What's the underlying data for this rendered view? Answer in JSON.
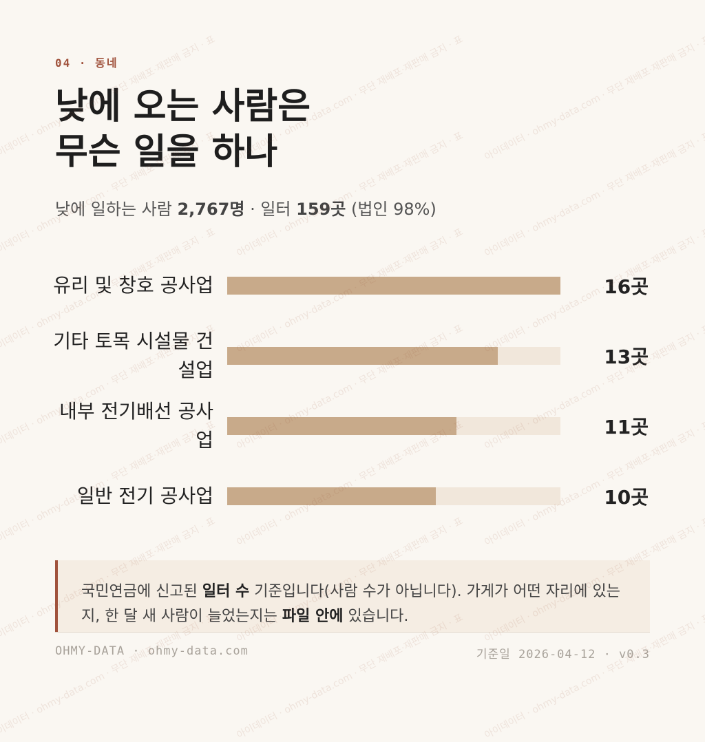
{
  "header": {
    "eyebrow": "04 · 동네",
    "title_lines": [
      "낮에 오는 사람은",
      "무슨 일을 하나"
    ]
  },
  "subtitle": [
    "낮에 일하는 사람 ",
    "2,767명",
    " · 일터 ",
    "159곳",
    " (법인 98%)"
  ],
  "chart_data": {
    "type": "bar",
    "orientation": "horizontal",
    "categories": [
      "유리 및 창호 공사업",
      "기타 토목 시설물 건설업",
      "내부 전기배선 공사업",
      "일반 전기 공사업"
    ],
    "values": [
      16,
      13,
      11,
      10
    ],
    "value_labels": [
      "16곳",
      "13곳",
      "11곳",
      "10곳"
    ],
    "color": "#c8aa8a",
    "track_color": "#f1e7db",
    "xlim": [
      0,
      16
    ]
  },
  "note": [
    "국민연금에 신고된 ",
    "일터 수",
    " 기준입니다(사람 수가 아닙니다). 가게가 어떤 자리에 있는지, 한 달 새 사람이 늘었는지는 ",
    "파일 안에",
    " 있습니다."
  ],
  "footer": {
    "left": "OHMY-DATA · ohmy-data.com",
    "right": "기준일 2026-04-12 · v0.3"
  },
  "watermark": "아이데이터 · ohmy-data.com · 무단 재배포·재판매 금지 · 표"
}
